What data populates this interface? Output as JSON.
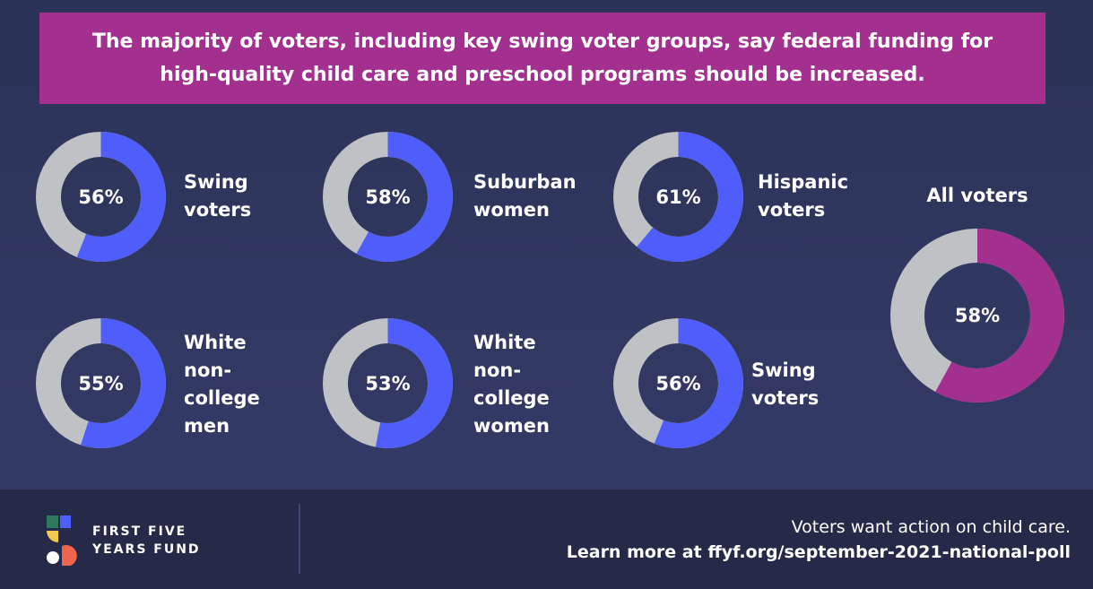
{
  "banner": {
    "line1": "The majority of voters, including key swing voter groups, say federal funding for",
    "line2": "high-quality child care and preschool programs should be increased."
  },
  "colors": {
    "background": "#30375f",
    "banner": "#a3308f",
    "group_fill": "#4f5efa",
    "all_fill": "#a3308f",
    "remainder": "#c0c1c4",
    "footer": "#242a47"
  },
  "chart_data": {
    "type": "pie",
    "charts": [
      {
        "name": "Swing voters",
        "label": "Swing\nvoters",
        "value": 56,
        "display": "56%"
      },
      {
        "name": "Suburban women",
        "label": "Suburban\nwomen",
        "value": 58,
        "display": "58%"
      },
      {
        "name": "Hispanic voters",
        "label": "Hispanic\nvoters",
        "value": 61,
        "display": "61%"
      },
      {
        "name": "White non-college men",
        "label": "White\nnon-\ncollege\nmen",
        "value": 55,
        "display": "55%"
      },
      {
        "name": "White non-college women",
        "label": "White\nnon-\ncollege\nwomen",
        "value": 53,
        "display": "53%"
      },
      {
        "name": "Swing voters",
        "label": "Swing\nvoters",
        "value": 56,
        "display": "56%"
      },
      {
        "name": "All voters",
        "label": "All voters",
        "value": 58,
        "display": "58%"
      }
    ]
  },
  "footer": {
    "brand_line1": "FIRST FIVE",
    "brand_line2": "YEARS FUND",
    "cta_line1": "Voters want action on child care.",
    "cta_line2": "Learn more at ffyf.org/september-2021-national-poll"
  }
}
